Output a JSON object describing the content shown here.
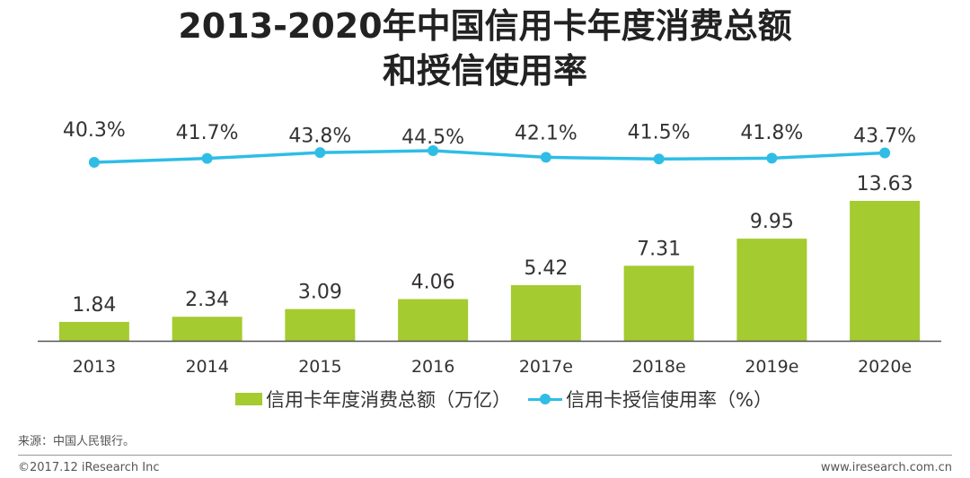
{
  "title": {
    "line1": "2013-2020年中国信用卡年度消费总额",
    "line2": "和授信使用率"
  },
  "colors": {
    "bar": "#a4cb2f",
    "line": "#2fbde6",
    "axis": "#555555",
    "label": "#333333"
  },
  "chart_data": {
    "type": "bar+line",
    "categories": [
      "2013",
      "2014",
      "2015",
      "2016",
      "2017e",
      "2018e",
      "2019e",
      "2020e"
    ],
    "series": [
      {
        "name": "信用卡年度消费总额（万亿）",
        "type": "bar",
        "values": [
          1.84,
          2.34,
          3.09,
          4.06,
          5.42,
          7.31,
          9.95,
          13.63
        ],
        "labels": [
          "1.84",
          "2.34",
          "3.09",
          "4.06",
          "5.42",
          "7.31",
          "9.95",
          "13.63"
        ]
      },
      {
        "name": "信用卡授信使用率（%）",
        "type": "line",
        "values": [
          40.3,
          41.7,
          43.8,
          44.5,
          42.1,
          41.5,
          41.8,
          43.7
        ],
        "labels": [
          "40.3%",
          "41.7%",
          "43.8%",
          "44.5%",
          "42.1%",
          "41.5%",
          "41.8%",
          "43.7%"
        ]
      }
    ]
  },
  "source": "来源：中国人民银行。",
  "footer": {
    "copyright": "©2017.12 iResearch Inc",
    "website": "www.iresearch.com.cn"
  }
}
